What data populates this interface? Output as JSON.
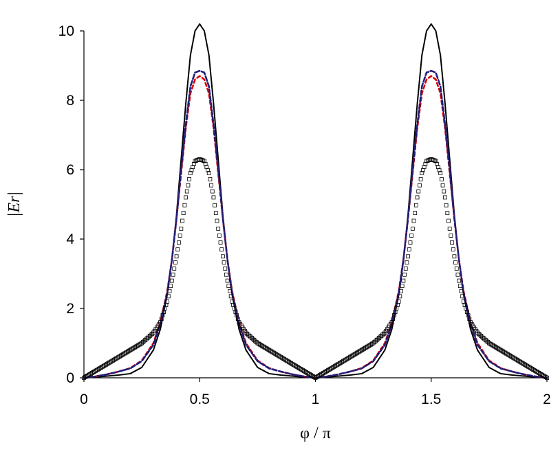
{
  "chart_data": {
    "type": "line",
    "xlabel": "φ / π",
    "ylabel": "|Er|",
    "xlim": [
      0,
      2
    ],
    "ylim": [
      0,
      10
    ],
    "x_ticks": [
      "0",
      "0.5",
      "1",
      "1.5",
      "2"
    ],
    "y_ticks": [
      "0",
      "2",
      "4",
      "6",
      "8",
      "10"
    ],
    "grid": false,
    "legend": "none",
    "series": [
      {
        "style": "solid",
        "color": "#000000",
        "x": [
          0,
          0.05,
          0.1,
          0.15,
          0.2,
          0.25,
          0.3,
          0.33,
          0.36,
          0.38,
          0.4,
          0.42,
          0.44,
          0.46,
          0.48,
          0.5,
          0.52,
          0.54,
          0.56,
          0.58,
          0.6,
          0.62,
          0.64,
          0.67,
          0.7,
          0.75,
          0.8,
          0.85,
          0.9,
          0.95,
          1,
          1.05,
          1.1,
          1.15,
          1.2,
          1.25,
          1.3,
          1.33,
          1.36,
          1.38,
          1.4,
          1.42,
          1.44,
          1.46,
          1.48,
          1.5,
          1.52,
          1.54,
          1.56,
          1.58,
          1.6,
          1.62,
          1.64,
          1.67,
          1.7,
          1.75,
          1.8,
          1.85,
          1.9,
          1.95,
          2
        ],
        "y": [
          0,
          0.02,
          0.05,
          0.08,
          0.12,
          0.3,
          0.8,
          1.4,
          2.4,
          3.4,
          4.7,
          6.3,
          7.9,
          9.3,
          10.0,
          10.2,
          10.0,
          9.3,
          7.9,
          6.3,
          4.7,
          3.4,
          2.4,
          1.4,
          0.8,
          0.3,
          0.12,
          0.08,
          0.05,
          0.02,
          0,
          0.02,
          0.05,
          0.08,
          0.12,
          0.3,
          0.8,
          1.4,
          2.4,
          3.4,
          4.7,
          6.3,
          7.9,
          9.3,
          10.0,
          10.2,
          10.0,
          9.3,
          7.9,
          6.3,
          4.7,
          3.4,
          2.4,
          1.4,
          0.8,
          0.3,
          0.12,
          0.08,
          0.05,
          0.02,
          0
        ]
      },
      {
        "style": "dashed",
        "color": "#e00000",
        "x": [
          0,
          0.05,
          0.1,
          0.15,
          0.2,
          0.25,
          0.3,
          0.33,
          0.36,
          0.38,
          0.4,
          0.42,
          0.44,
          0.46,
          0.48,
          0.5,
          0.52,
          0.54,
          0.56,
          0.58,
          0.6,
          0.62,
          0.64,
          0.67,
          0.7,
          0.75,
          0.8,
          0.85,
          0.9,
          0.95,
          1,
          1.05,
          1.1,
          1.15,
          1.2,
          1.25,
          1.3,
          1.33,
          1.36,
          1.38,
          1.4,
          1.42,
          1.44,
          1.46,
          1.48,
          1.5,
          1.52,
          1.54,
          1.56,
          1.58,
          1.6,
          1.62,
          1.64,
          1.67,
          1.7,
          1.75,
          1.8,
          1.85,
          1.9,
          1.95,
          2
        ],
        "y": [
          0,
          0.04,
          0.1,
          0.18,
          0.28,
          0.5,
          1.0,
          1.6,
          2.5,
          3.4,
          4.6,
          5.9,
          7.2,
          8.2,
          8.6,
          8.7,
          8.6,
          8.2,
          7.2,
          5.9,
          4.6,
          3.4,
          2.5,
          1.6,
          1.0,
          0.5,
          0.28,
          0.18,
          0.1,
          0.04,
          0,
          0.04,
          0.1,
          0.18,
          0.28,
          0.5,
          1.0,
          1.6,
          2.5,
          3.4,
          4.6,
          5.9,
          7.2,
          8.2,
          8.6,
          8.7,
          8.6,
          8.2,
          7.2,
          5.9,
          4.6,
          3.4,
          2.5,
          1.6,
          1.0,
          0.5,
          0.28,
          0.18,
          0.1,
          0.04,
          0
        ]
      },
      {
        "style": "dashed",
        "color": "#1f1f7a",
        "x": [
          0,
          0.05,
          0.1,
          0.15,
          0.2,
          0.25,
          0.3,
          0.33,
          0.36,
          0.38,
          0.4,
          0.42,
          0.44,
          0.46,
          0.48,
          0.5,
          0.52,
          0.54,
          0.56,
          0.58,
          0.6,
          0.62,
          0.64,
          0.67,
          0.7,
          0.75,
          0.8,
          0.85,
          0.9,
          0.95,
          1,
          1.05,
          1.1,
          1.15,
          1.2,
          1.25,
          1.3,
          1.33,
          1.36,
          1.38,
          1.4,
          1.42,
          1.44,
          1.46,
          1.48,
          1.5,
          1.52,
          1.54,
          1.56,
          1.58,
          1.6,
          1.62,
          1.64,
          1.67,
          1.7,
          1.75,
          1.8,
          1.85,
          1.9,
          1.95,
          2
        ],
        "y": [
          0,
          0.04,
          0.1,
          0.18,
          0.27,
          0.48,
          0.95,
          1.55,
          2.45,
          3.4,
          4.6,
          6.0,
          7.3,
          8.4,
          8.8,
          8.85,
          8.8,
          8.4,
          7.3,
          6.0,
          4.6,
          3.4,
          2.45,
          1.55,
          0.95,
          0.48,
          0.27,
          0.18,
          0.1,
          0.04,
          0,
          0.04,
          0.1,
          0.18,
          0.27,
          0.48,
          0.95,
          1.55,
          2.45,
          3.4,
          4.6,
          6.0,
          7.3,
          8.4,
          8.8,
          8.85,
          8.8,
          8.4,
          7.3,
          6.0,
          4.6,
          3.4,
          2.45,
          1.55,
          0.95,
          0.48,
          0.27,
          0.18,
          0.1,
          0.04,
          0
        ]
      },
      {
        "style": "square-markers",
        "color": "#000000",
        "x": [
          0,
          0.05,
          0.1,
          0.15,
          0.2,
          0.25,
          0.3,
          0.33,
          0.36,
          0.38,
          0.4,
          0.42,
          0.44,
          0.46,
          0.48,
          0.5,
          0.52,
          0.54,
          0.56,
          0.58,
          0.6,
          0.62,
          0.64,
          0.67,
          0.7,
          0.75,
          0.8,
          0.85,
          0.9,
          0.95,
          1,
          1.05,
          1.1,
          1.15,
          1.2,
          1.25,
          1.3,
          1.33,
          1.36,
          1.38,
          1.4,
          1.42,
          1.44,
          1.46,
          1.48,
          1.5,
          1.52,
          1.54,
          1.56,
          1.58,
          1.6,
          1.62,
          1.64,
          1.67,
          1.7,
          1.75,
          1.8,
          1.85,
          1.9,
          1.95,
          2
        ],
        "y": [
          0,
          0.2,
          0.4,
          0.6,
          0.8,
          1.0,
          1.3,
          1.6,
          2.2,
          2.8,
          3.5,
          4.3,
          5.2,
          5.9,
          6.25,
          6.3,
          6.25,
          5.9,
          5.2,
          4.3,
          3.5,
          2.8,
          2.2,
          1.6,
          1.3,
          1.0,
          0.8,
          0.6,
          0.4,
          0.2,
          0,
          0.2,
          0.4,
          0.6,
          0.8,
          1.0,
          1.3,
          1.6,
          2.2,
          2.8,
          3.5,
          4.3,
          5.2,
          5.9,
          6.25,
          6.3,
          6.25,
          5.9,
          5.2,
          4.3,
          3.5,
          2.8,
          2.2,
          1.6,
          1.3,
          1.0,
          0.8,
          0.6,
          0.4,
          0.2,
          0
        ]
      }
    ]
  }
}
